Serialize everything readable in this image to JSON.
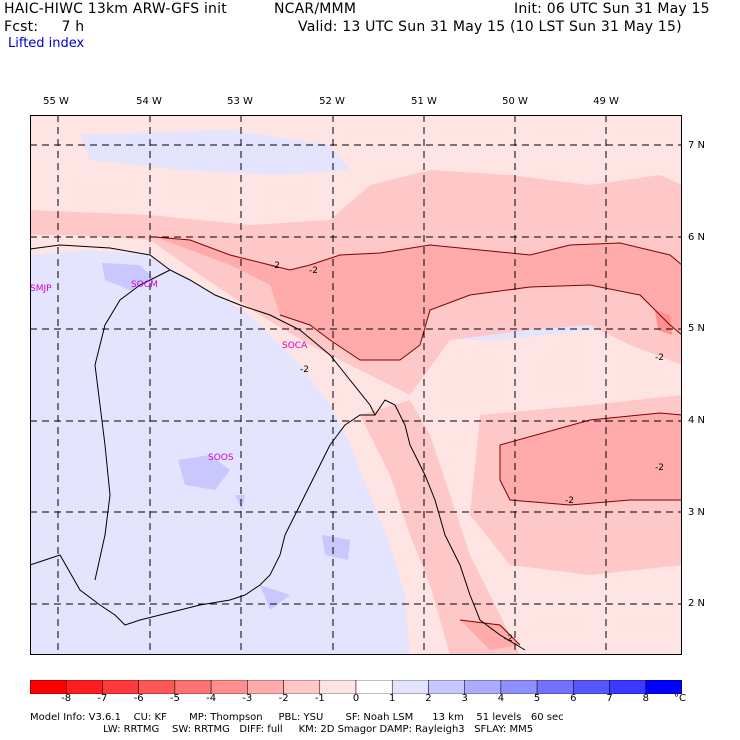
{
  "header": {
    "model": "HAIC-HIWC 13km ARW-GFS init",
    "org": "NCAR/MMM",
    "init": "Init: 06 UTC Sun 31 May 15",
    "fcst": "Fcst:     7 h",
    "valid": "Valid: 13 UTC Sun 31 May 15 (10 LST Sun 31 May 15)",
    "field": "Lifted index"
  },
  "axes": {
    "longitudes": [
      "55 W",
      "54 W",
      "53 W",
      "52 W",
      "51 W",
      "50 W",
      "49 W"
    ],
    "latitudes": [
      "7 N",
      "6 N",
      "5 N",
      "4 N",
      "3 N",
      "2 N"
    ]
  },
  "stations": [
    "SMJP",
    "SOCM",
    "SOCA",
    "SOOS"
  ],
  "contour_label": "-2",
  "colorbar": {
    "labels": [
      "-8",
      "-7",
      "-6",
      "-5",
      "-4",
      "-3",
      "-2",
      "-1",
      "0",
      "1",
      "2",
      "3",
      "4",
      "5",
      "6",
      "7",
      "8"
    ],
    "unit": "°C",
    "colors": [
      "#ff0000",
      "#ff1d1d",
      "#ff3939",
      "#ff5656",
      "#ff7272",
      "#ff8f8f",
      "#ffabab",
      "#ffc8c8",
      "#ffe4e4",
      "#ffffff",
      "#e4e4ff",
      "#c8c8ff",
      "#abababff",
      "#8f8fff",
      "#7272ff",
      "#5656ff",
      "#3939ff",
      "#0000ff"
    ]
  },
  "footer": {
    "line1": "Model Info: V3.6.1    CU: KF       MP: Thompson     PBL: YSU       SF: Noah LSM      13 km    51 levels   60 sec",
    "line2": "                       LW: RRTMG    SW: RRTMG   DIFF: full     KM: 2D Smagor DAMP: Rayleigh3   SFLAY: MM5"
  }
}
